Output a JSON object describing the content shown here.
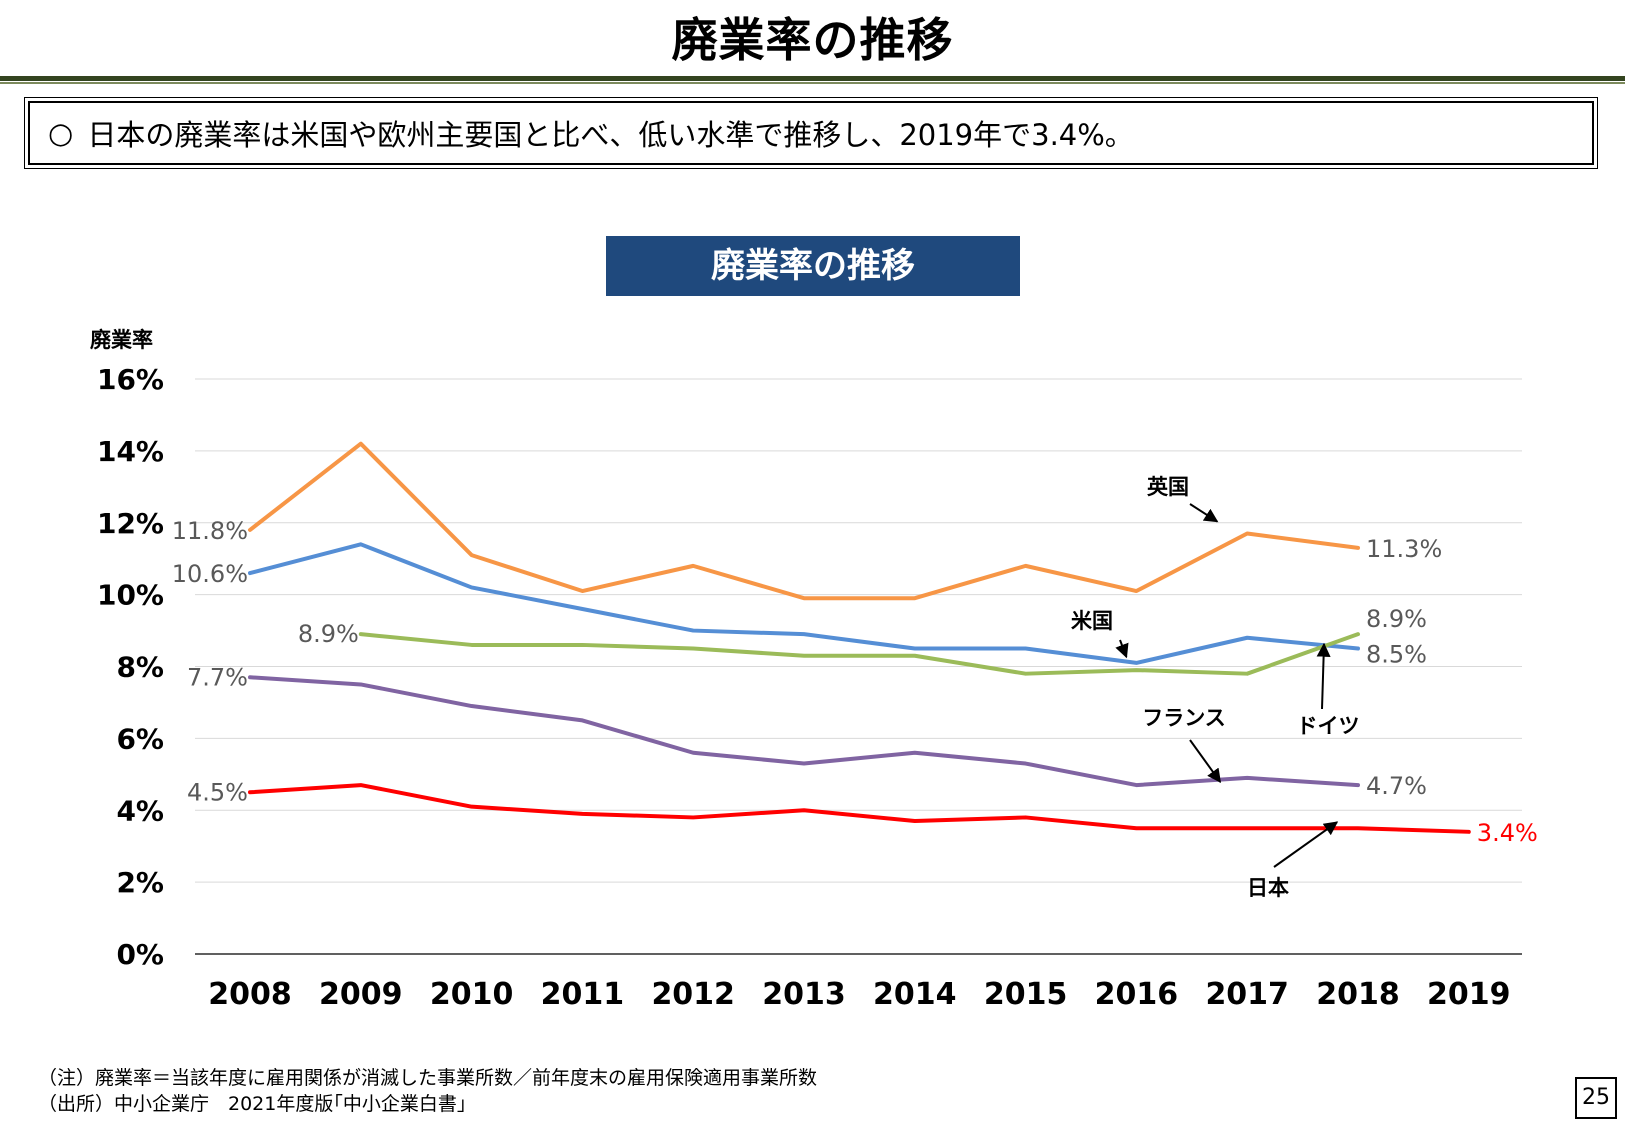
{
  "slide": {
    "title": "廃業率の推移",
    "summary_bullet": "○",
    "summary": "日本の廃業率は米国や欧州主要国と比べ、低い水準で推移し、2019年で3.4%。",
    "footnote_note": "（注）廃業率＝当該年度に雇用関係が消滅した事業所数／前年度末の雇用保険適用事業所数",
    "footnote_source": "（出所）中小企業庁　2021年度版｢中小企業白書｣",
    "page_number": "25"
  },
  "chart_data": {
    "type": "line",
    "title": "廃業率の推移",
    "ylabel": "廃業率",
    "xlabel": "",
    "ylim": [
      0,
      16
    ],
    "y_ticks": [
      0,
      2,
      4,
      6,
      8,
      10,
      12,
      14,
      16
    ],
    "y_tick_labels": [
      "0%",
      "2%",
      "4%",
      "6%",
      "8%",
      "10%",
      "12%",
      "14%",
      "16%"
    ],
    "categories": [
      "2008",
      "2009",
      "2010",
      "2011",
      "2012",
      "2013",
      "2014",
      "2015",
      "2016",
      "2017",
      "2018",
      "2019"
    ],
    "grid": true,
    "series": [
      {
        "name": "英国",
        "color": "#f79646",
        "values": [
          11.8,
          14.2,
          11.1,
          10.1,
          10.8,
          9.9,
          9.9,
          10.8,
          10.1,
          11.7,
          11.3,
          null
        ],
        "start_label": "11.8%",
        "end_label": "11.3%",
        "label_color": "#595959"
      },
      {
        "name": "米国",
        "color": "#558ed5",
        "values": [
          10.6,
          11.4,
          10.2,
          9.6,
          9.0,
          8.9,
          8.5,
          8.5,
          8.1,
          8.8,
          8.5,
          null
        ],
        "start_label": "10.6%",
        "end_label": "8.5%",
        "label_color": "#595959"
      },
      {
        "name": "ドイツ",
        "color": "#9bbb59",
        "values": [
          null,
          8.9,
          8.6,
          8.6,
          8.5,
          8.3,
          8.3,
          7.8,
          7.9,
          7.8,
          8.9,
          null
        ],
        "start_label": "8.9%",
        "end_label": "8.9%",
        "label_color": "#595959"
      },
      {
        "name": "フランス",
        "color": "#8064a2",
        "values": [
          7.7,
          7.5,
          6.9,
          6.5,
          5.6,
          5.3,
          5.6,
          5.3,
          4.7,
          4.9,
          4.7,
          null
        ],
        "start_label": "7.7%",
        "end_label": "4.7%",
        "label_color": "#595959"
      },
      {
        "name": "日本",
        "color": "#ff0000",
        "values": [
          4.5,
          4.7,
          4.1,
          3.9,
          3.8,
          4.0,
          3.7,
          3.8,
          3.5,
          3.5,
          3.5,
          3.4
        ],
        "start_label": "4.5%",
        "end_label": "3.4%",
        "label_color": "#595959",
        "end_label_color": "#ff0000"
      }
    ]
  }
}
